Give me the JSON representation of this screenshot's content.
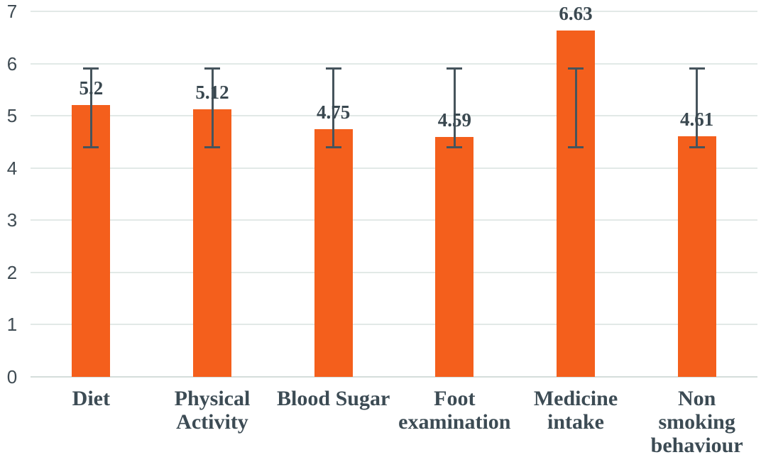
{
  "chart_data": {
    "type": "bar",
    "title": "",
    "xlabel": "",
    "ylabel": "",
    "categories": [
      "Diet",
      "Physical\nActivity",
      "Blood Sugar",
      "Foot\nexamination",
      "Medicine\nintake",
      "Non\nsmoking\nbehaviour"
    ],
    "values": [
      5.2,
      5.12,
      4.75,
      4.59,
      6.63,
      4.61
    ],
    "value_labels": [
      "5.2",
      "5.12",
      "4.75",
      "4.59",
      "6.63",
      "4.61"
    ],
    "error_low": [
      4.38,
      4.38,
      4.38,
      4.38,
      4.38,
      4.38
    ],
    "error_high": [
      5.93,
      5.93,
      5.93,
      5.93,
      5.93,
      5.93
    ],
    "ylim": [
      0,
      7
    ],
    "yticks": [
      0,
      1,
      2,
      3,
      4,
      5,
      6,
      7
    ],
    "grid": true,
    "legend": false,
    "colors": {
      "bar": "#F45F1C",
      "error_bar": "#46545C",
      "value_text": "#3A4850",
      "category_text": "#3C4B54",
      "tick_text": "#3F4B53",
      "gridline": "#E2E9E7",
      "baseline": "#D5DDDB",
      "background": "#FFFFFF"
    }
  }
}
